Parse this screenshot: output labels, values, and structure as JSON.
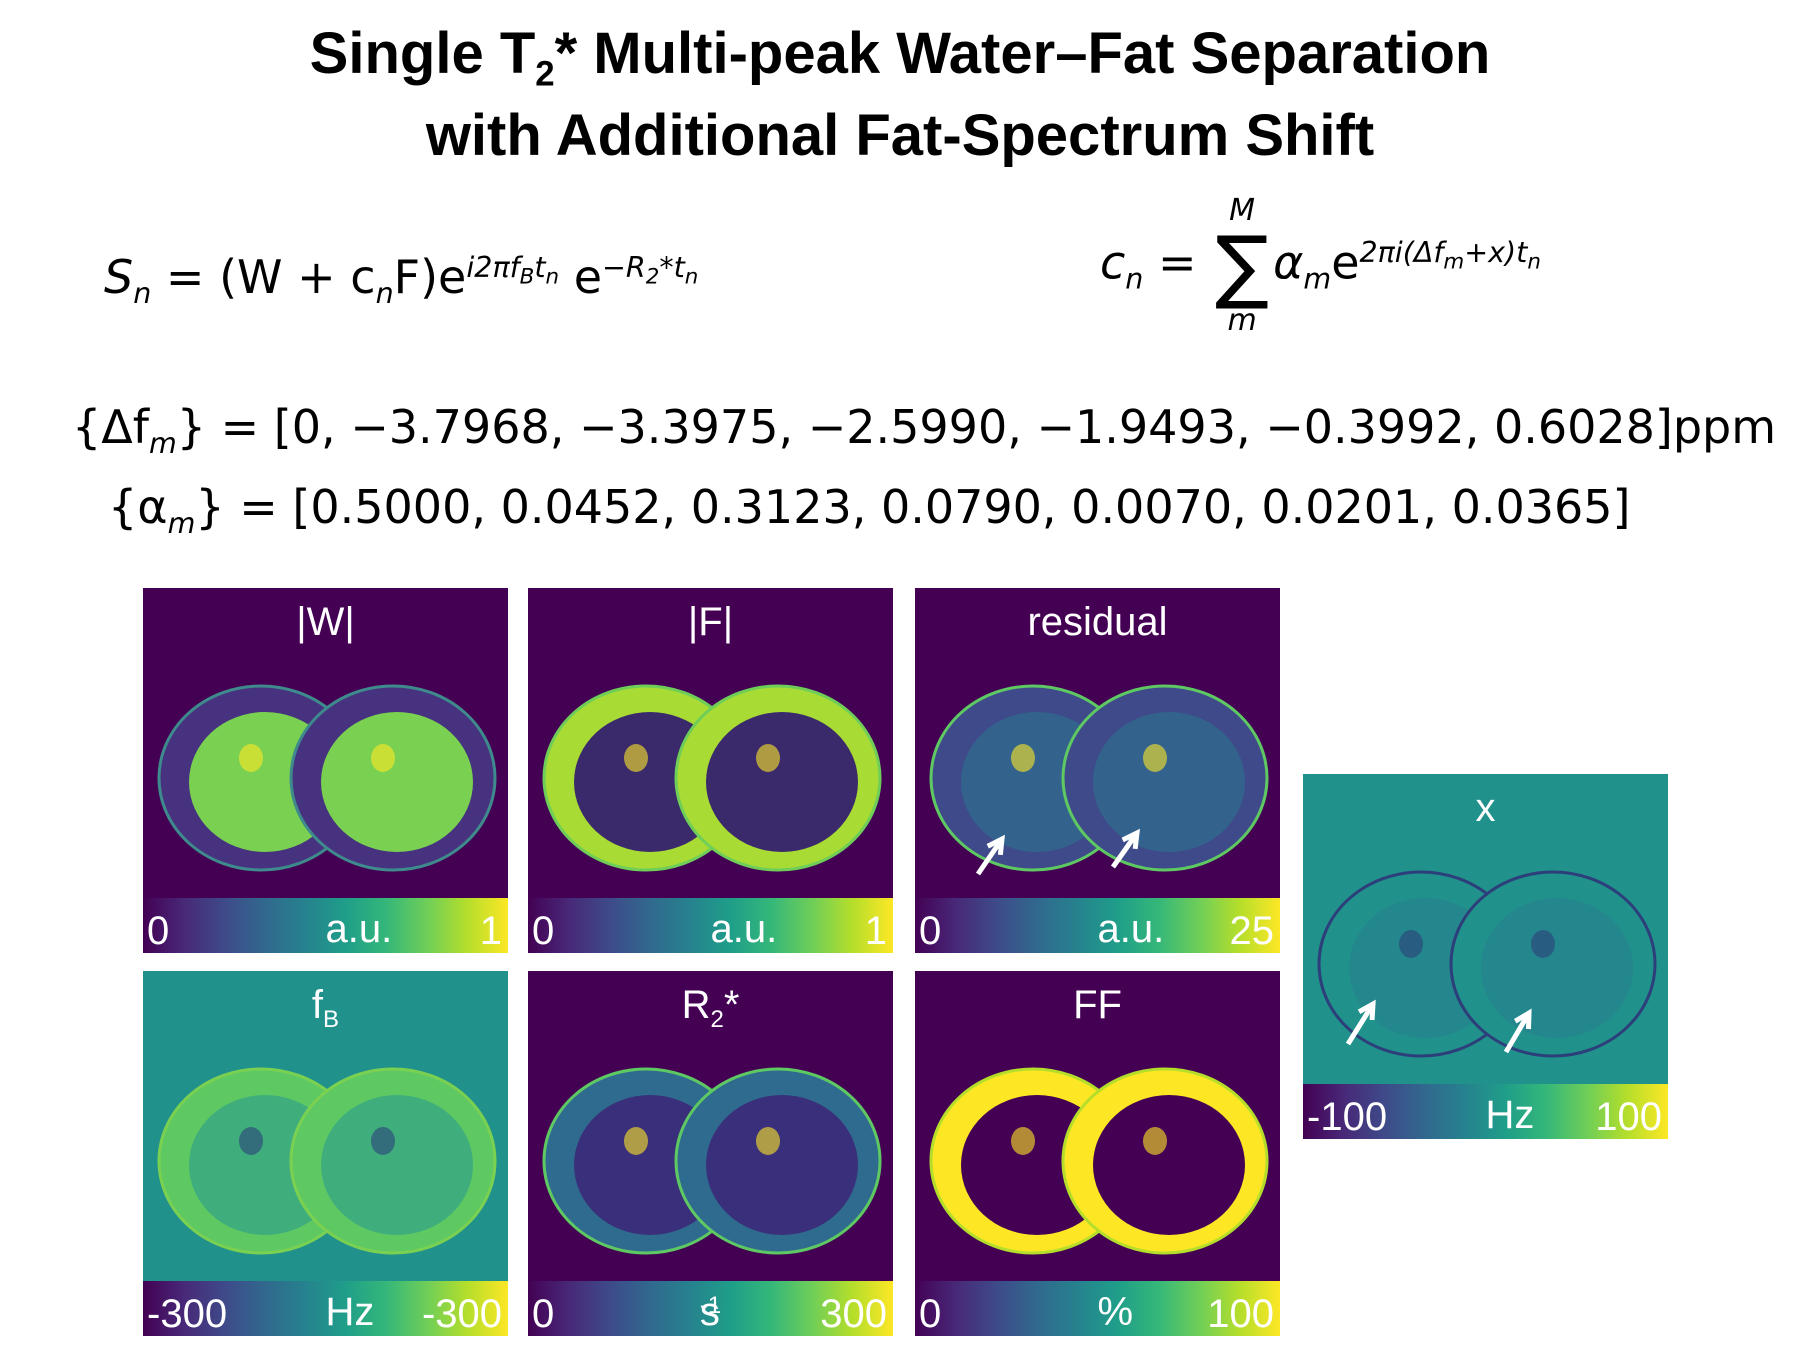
{
  "title": {
    "line1": [
      "Single T",
      "2",
      "* Multi-peak Water–Fat Separation"
    ],
    "line2": "with Additional Fat-Spectrum Shift"
  },
  "formulas": {
    "signal": [
      "S",
      "n",
      " = (W + c",
      "n",
      "F)e",
      "i2πf",
      "B",
      "t",
      "n",
      "e",
      "−R",
      "2",
      "*",
      "t",
      "n"
    ],
    "coefficient": [
      "c",
      "n",
      " = ",
      "M",
      "∑",
      "m",
      "α",
      "m",
      "e",
      "2πi(Δf",
      "m",
      "+x)t",
      "n"
    ],
    "frequencies": [
      "{Δf",
      "m",
      "} = [0, −3.7968, −3.3975, −2.5990, −1.9493, −0.3992, 0.6028]ppm"
    ],
    "amplitudes": [
      "{α",
      "m",
      "} = [0.5000, 0.0452, 0.3123, 0.0790, 0.0070, 0.0201, 0.0365]"
    ]
  },
  "panels": [
    {
      "title": [
        "|W|"
      ],
      "min": "0",
      "unit": [
        "a.u."
      ],
      "max": "1"
    },
    {
      "title": [
        "|F|"
      ],
      "min": "0",
      "unit": [
        "a.u."
      ],
      "max": "1"
    },
    {
      "title": [
        "residual"
      ],
      "min": "0",
      "unit": [
        "a.u."
      ],
      "max": "25"
    },
    {
      "title": [
        "f",
        "B"
      ],
      "min": "-300",
      "unit": [
        "Hz"
      ],
      "max": "-300"
    },
    {
      "title": [
        "R",
        "2",
        "*"
      ],
      "min": "0",
      "unit": [
        "s",
        "-1"
      ],
      "max": "300"
    },
    {
      "title": [
        "FF"
      ],
      "min": "0",
      "unit": [
        "%"
      ],
      "max": "100"
    },
    {
      "title": [
        "x"
      ],
      "min": "-100",
      "unit": [
        "Hz"
      ],
      "max": "100"
    }
  ]
}
